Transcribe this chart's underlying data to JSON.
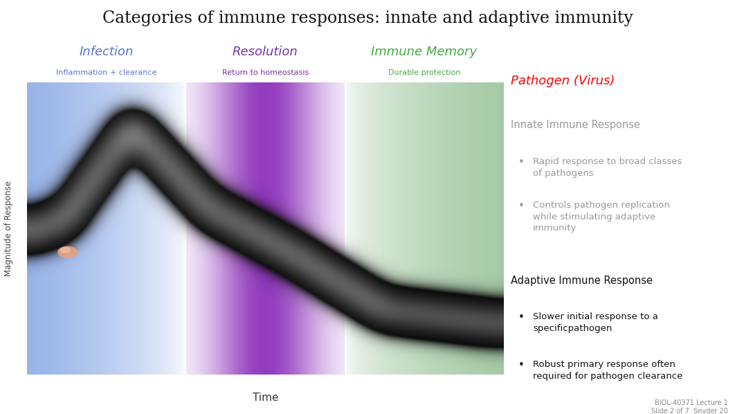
{
  "title": "Categories of immune responses: innate and adaptive immunity",
  "title_fontsize": 17,
  "title_color": "#111111",
  "bg_color": "#ffffff",
  "phase1_label": "Infection",
  "phase1_sublabel": "Inflammation + clearance",
  "phase1_color": "#5577cc",
  "phase2_label": "Resolution",
  "phase2_sublabel": "Return to homeostasis",
  "phase2_color": "#7733aa",
  "phase3_label": "Immune Memory",
  "phase3_sublabel": "Durable protection",
  "phase3_color": "#44aa44",
  "ylabel": "Magnitude of Response",
  "xlabel": "Time",
  "pathogen_label": "Pathogen (Virus)",
  "pathogen_color": "#ff0000",
  "innate_header": "Innate Immune Response",
  "innate_color": "#999999",
  "innate_bullet1": "Rapid response to broad classes\nof pathogens",
  "innate_bullet2": "Controls pathogen replication\nwhile stimulating adaptive\nimmunity",
  "adaptive_header": "Adaptive Immune Response",
  "adaptive_color": "#111111",
  "adaptive_bullet1": "Slower initial response to a\nspecificpathogen",
  "adaptive_bullet2": "Robust primary response often\nrequired for pathogen clearance",
  "footnote_line1": "BIOL-40371 Lecture 1",
  "footnote_line2": "Slide 2 of 7  Snyder 20",
  "footnote_color": "#888888"
}
